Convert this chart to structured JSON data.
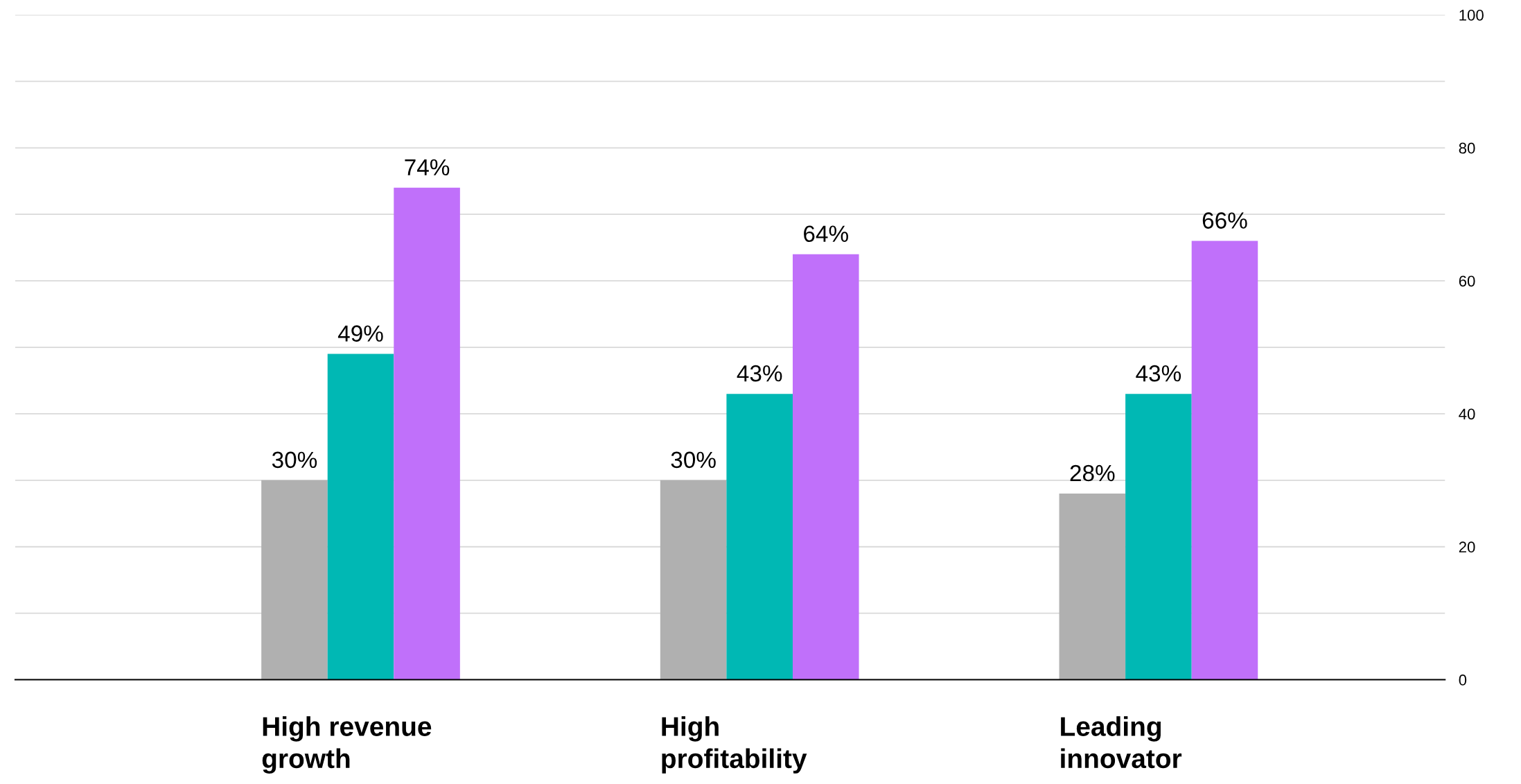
{
  "chart_data": {
    "type": "bar",
    "categories": [
      "High revenue\ngrowth",
      "High\nprofitability",
      "Leading\ninnovator"
    ],
    "series": [
      {
        "color": "#b0b0b0",
        "values": [
          30,
          30,
          28
        ],
        "value_labels": [
          "30%",
          "30%",
          "28%"
        ]
      },
      {
        "color": "#00b8b4",
        "values": [
          49,
          43,
          43
        ],
        "value_labels": [
          "49%",
          "43%",
          "43%"
        ]
      },
      {
        "color": "#c070fa",
        "values": [
          74,
          64,
          66
        ],
        "value_labels": [
          "74%",
          "64%",
          "66%"
        ]
      }
    ],
    "ylim": [
      0,
      100
    ],
    "yticks": [
      0,
      {
        "value": 10,
        "label": null
      },
      20,
      {
        "value": 30,
        "label": null
      },
      40,
      {
        "value": 50,
        "label": null
      },
      60,
      {
        "value": 70,
        "label": null
      },
      80,
      {
        "value": 90,
        "label": null
      },
      100
    ],
    "grid": "y",
    "legend": false
  }
}
